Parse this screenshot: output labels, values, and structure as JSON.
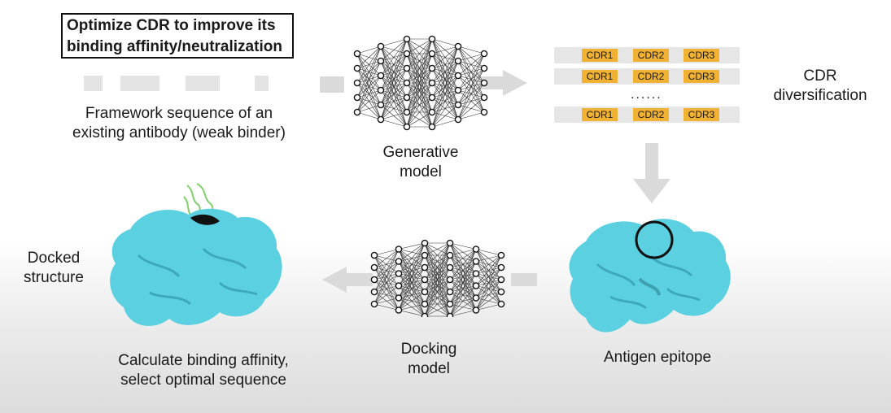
{
  "goal": {
    "line1": "Optimize CDR to improve its",
    "line2": "binding affinity/neutralization"
  },
  "framework": {
    "line1": "Framework sequence of an",
    "line2": "existing antibody (weak binder)"
  },
  "generative_model": {
    "line1": "Generative",
    "line2": "model"
  },
  "cdr_rows": [
    [
      "CDR1",
      "CDR2",
      "CDR3"
    ],
    [
      "CDR1",
      "CDR2",
      "CDR3"
    ],
    [
      "CDR1",
      "CDR2",
      "CDR3"
    ]
  ],
  "cdr_ellipsis": "......",
  "cdr_diversification": {
    "line1": "CDR",
    "line2": "diversification"
  },
  "antigen_label": "Antigen epitope",
  "docking_model": {
    "line1": "Docking",
    "line2": "model"
  },
  "docked_structure": {
    "line1": "Docked",
    "line2": "structure"
  },
  "result": {
    "line1": "Calculate binding affinity,",
    "line2": "select optimal sequence"
  },
  "colors": {
    "protein": "#5ad0e0",
    "protein_dark": "#2a8fa0",
    "cdr_chip": "#f1b233",
    "arrow": "#dadada",
    "ligand": "#7fcf6a"
  }
}
